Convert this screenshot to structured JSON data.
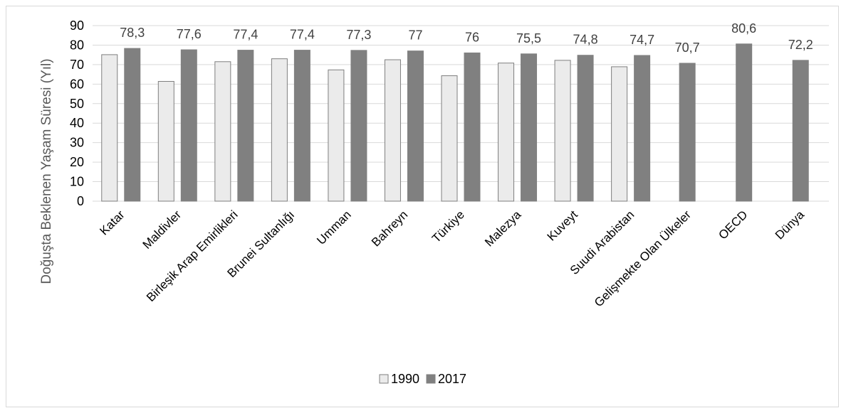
{
  "chart_data": {
    "type": "bar",
    "title": "",
    "xlabel": "",
    "ylabel": "Doğuşta Beklenen Yaşam Süresi (Yıl)",
    "ylim": [
      0,
      90
    ],
    "yticks": [
      0,
      10,
      20,
      30,
      40,
      50,
      60,
      70,
      80,
      90
    ],
    "grid": true,
    "legend_position": "bottom",
    "categories": [
      "Katar",
      "Maldivler",
      "Birleşik Arap Emirlikleri",
      "Brunei Sultanlığı",
      "Umman",
      "Bahreyn",
      "Türkiye",
      "Malezya",
      "Kuveyt",
      "Suudi Arabistan",
      "Gelişmekte Olan Ülkeler",
      "OECD",
      "Dünya"
    ],
    "series": [
      {
        "name": "1990",
        "color": "#ebebeb",
        "values": [
          75.1,
          61.4,
          71.5,
          73.0,
          67.3,
          72.5,
          64.3,
          70.8,
          72.2,
          68.9,
          null,
          null,
          null
        ]
      },
      {
        "name": "2017",
        "color": "#808080",
        "values": [
          78.3,
          77.6,
          77.4,
          77.4,
          77.3,
          77.0,
          76.0,
          75.5,
          74.8,
          74.7,
          70.7,
          80.6,
          72.2
        ]
      }
    ],
    "data_labels": [
      "78,3",
      "77,6",
      "77,4",
      "77,4",
      "77,3",
      "77",
      "76",
      "75,5",
      "74,8",
      "74,7",
      "70,7",
      "80,6",
      "72,2"
    ]
  }
}
